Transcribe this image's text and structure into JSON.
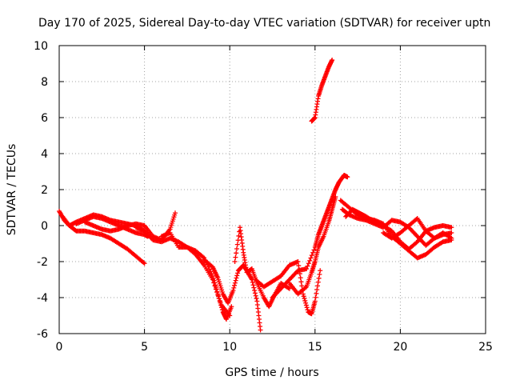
{
  "chart_data": {
    "type": "scatter",
    "title": "Day 170 of 2025, Sidereal Day-to-day VTEC variation (SDTVAR) for receiver uptn",
    "xlabel": "GPS time / hours",
    "ylabel": "SDTVAR / TECUs",
    "xlim": [
      0,
      25
    ],
    "ylim": [
      -6,
      10
    ],
    "xticks": [
      "0",
      "5",
      "10",
      "15",
      "20",
      "25"
    ],
    "yticks": [
      "-6",
      "-4",
      "-2",
      "0",
      "2",
      "4",
      "6",
      "8",
      "10"
    ],
    "grid": true,
    "marker": "plus",
    "color": "#ff0000",
    "series": [
      {
        "name": "trace-1",
        "x": [
          0.0,
          0.3,
          0.6,
          1.0,
          1.5,
          2.0,
          2.5,
          3.0,
          3.5,
          4.0,
          4.5,
          5.0
        ],
        "y": [
          0.8,
          0.3,
          0.0,
          0.2,
          0.4,
          0.6,
          0.5,
          0.3,
          0.2,
          0.1,
          0.0,
          -0.3
        ]
      },
      {
        "name": "trace-2",
        "x": [
          0.2,
          0.6,
          1.0,
          1.5,
          2.0,
          2.5,
          3.0,
          3.5,
          4.0,
          4.5,
          5.0
        ],
        "y": [
          0.5,
          0.0,
          -0.3,
          -0.3,
          -0.4,
          -0.5,
          -0.7,
          -1.0,
          -1.3,
          -1.7,
          -2.1
        ]
      },
      {
        "name": "trace-3",
        "x": [
          1.0,
          1.5,
          2.0,
          2.5,
          3.0,
          3.5,
          4.0,
          4.5,
          5.0,
          5.2
        ],
        "y": [
          0.1,
          0.3,
          0.5,
          0.4,
          0.2,
          0.0,
          -0.2,
          -0.4,
          -0.5,
          -0.6
        ]
      },
      {
        "name": "trace-4",
        "x": [
          1.5,
          2.0,
          2.5,
          3.0,
          3.5,
          4.0,
          4.5,
          5.0,
          5.5,
          6.0,
          6.5,
          6.8
        ],
        "y": [
          0.2,
          0.0,
          -0.2,
          -0.3,
          -0.2,
          0.0,
          0.1,
          0.0,
          -0.6,
          -0.8,
          -0.2,
          0.7
        ]
      },
      {
        "name": "trace-5",
        "x": [
          4.5,
          5.0,
          5.5,
          6.0,
          6.5,
          7.0,
          7.5,
          8.0,
          8.5,
          9.0,
          9.5,
          10.0
        ],
        "y": [
          -0.1,
          -0.3,
          -0.8,
          -0.9,
          -0.7,
          -0.9,
          -1.2,
          -1.6,
          -2.2,
          -3.0,
          -4.4,
          -5.0
        ]
      },
      {
        "name": "trace-6",
        "x": [
          6.0,
          6.5,
          7.0,
          7.5,
          8.0,
          8.5,
          9.0,
          9.3,
          9.6,
          9.8,
          10.1
        ],
        "y": [
          -0.6,
          -0.4,
          -1.2,
          -1.2,
          -1.4,
          -1.8,
          -2.8,
          -3.8,
          -4.8,
          -5.2,
          -4.5
        ]
      },
      {
        "name": "trace-7",
        "x": [
          8.5,
          9.0,
          9.3,
          9.6,
          9.9,
          10.2,
          10.5,
          10.8,
          11.0,
          11.3,
          11.6,
          11.8
        ],
        "y": [
          -1.9,
          -2.3,
          -2.9,
          -3.8,
          -4.3,
          -3.6,
          -2.5,
          -2.2,
          -2.5,
          -3.0,
          -4.2,
          -5.8
        ]
      },
      {
        "name": "trace-8",
        "x": [
          10.3,
          10.6,
          10.8,
          11.0,
          11.3,
          11.6,
          12.0,
          12.3,
          12.6,
          13.0,
          13.5
        ],
        "y": [
          -2.0,
          -0.1,
          -1.5,
          -2.6,
          -2.4,
          -3.2,
          -4.0,
          -4.5,
          -3.9,
          -3.2,
          -3.5
        ]
      },
      {
        "name": "trace-9",
        "x": [
          11.5,
          12.0,
          12.5,
          13.0,
          13.5,
          14.0,
          14.3,
          14.6,
          14.8,
          15.0,
          15.3
        ],
        "y": [
          -3.0,
          -3.4,
          -3.1,
          -2.8,
          -2.2,
          -2.0,
          -3.8,
          -4.8,
          -4.9,
          -4.2,
          -2.5
        ]
      },
      {
        "name": "trace-10",
        "x": [
          12.5,
          13.0,
          13.5,
          14.0,
          14.5,
          15.0,
          15.2,
          15.4,
          15.6,
          15.8,
          16.0,
          16.2,
          16.4,
          16.7,
          16.9
        ],
        "y": [
          -4.0,
          -3.5,
          -3.0,
          -2.5,
          -2.4,
          -1.2,
          -0.5,
          0.0,
          0.5,
          1.0,
          1.5,
          2.0,
          2.4,
          2.8,
          2.7
        ]
      },
      {
        "name": "trace-11",
        "x": [
          13.5,
          14.0,
          14.5,
          14.8,
          15.0,
          15.2,
          15.5,
          15.8,
          16.0,
          16.2
        ],
        "y": [
          -3.2,
          -3.8,
          -3.4,
          -2.6,
          -2.0,
          -1.2,
          -0.6,
          0.2,
          0.9,
          1.6
        ]
      },
      {
        "name": "trace-12",
        "x": [
          14.8,
          15.0,
          15.2,
          15.4,
          15.6,
          15.8,
          16.0
        ],
        "y": [
          5.8,
          6.0,
          7.2,
          7.8,
          8.3,
          8.8,
          9.2
        ]
      },
      {
        "name": "trace-13",
        "x": [
          16.5,
          17.0,
          17.5,
          18.0,
          18.5,
          19.0,
          19.5,
          20.0,
          20.5,
          21.0,
          21.5,
          22.0,
          22.5,
          23.0
        ],
        "y": [
          1.4,
          1.0,
          0.6,
          0.4,
          0.3,
          0.1,
          -0.6,
          -1.0,
          -1.4,
          -1.8,
          -1.6,
          -1.2,
          -0.9,
          -0.8
        ]
      },
      {
        "name": "trace-14",
        "x": [
          16.6,
          17.0,
          17.5,
          18.0,
          18.5,
          19.0,
          19.5,
          20.0,
          20.5,
          21.0,
          21.5,
          22.0,
          22.5,
          23.0
        ],
        "y": [
          0.9,
          0.6,
          0.4,
          0.3,
          0.1,
          -0.1,
          0.3,
          0.2,
          -0.1,
          -0.6,
          -1.1,
          -0.7,
          -0.5,
          -0.4
        ]
      },
      {
        "name": "trace-15",
        "x": [
          16.8,
          17.2,
          17.6,
          18.0,
          18.5,
          19.0,
          19.5,
          20.0,
          20.5,
          21.0,
          21.5,
          22.0,
          22.5,
          23.0
        ],
        "y": [
          0.5,
          0.9,
          0.7,
          0.5,
          0.2,
          0.0,
          -0.3,
          -0.9,
          -1.3,
          -0.9,
          -0.3,
          -0.1,
          0.0,
          -0.1
        ]
      },
      {
        "name": "trace-16",
        "x": [
          19.0,
          19.5,
          20.0,
          20.5,
          21.0,
          21.5,
          22.0,
          22.5,
          23.0
        ],
        "y": [
          -0.4,
          -0.7,
          -0.4,
          0.0,
          0.4,
          -0.3,
          -0.7,
          -0.4,
          -0.7
        ]
      }
    ]
  }
}
